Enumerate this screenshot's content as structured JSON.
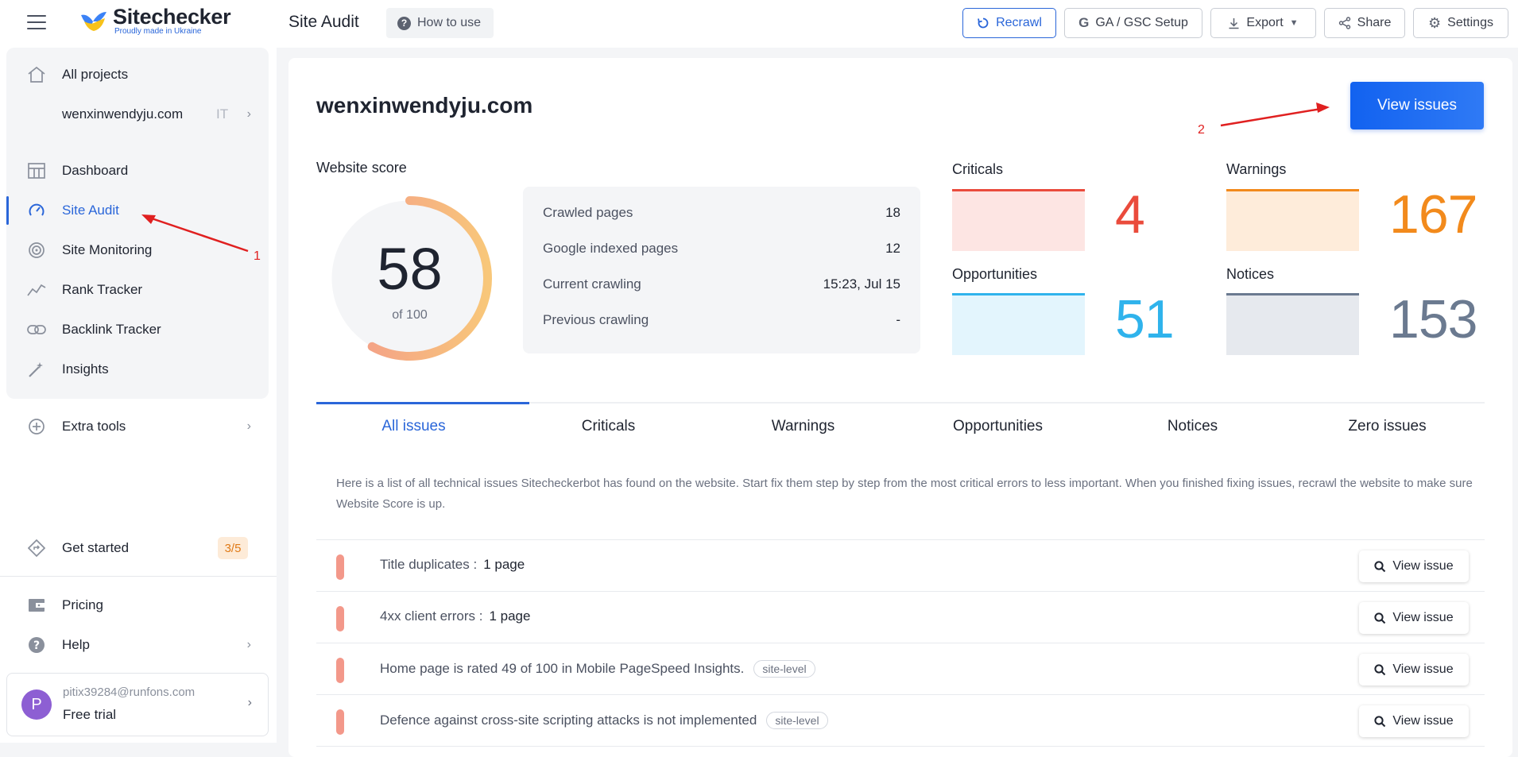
{
  "header": {
    "logo_name": "Sitechecker",
    "logo_tagline": "Proudly made in Ukraine",
    "page_title": "Site Audit",
    "how_to_use": "How to use",
    "buttons": {
      "recrawl": "Recrawl",
      "ga_gsc": "GA / GSC Setup",
      "export": "Export",
      "share": "Share",
      "settings": "Settings"
    }
  },
  "sidebar": {
    "all_projects": "All projects",
    "project": "wenxinwendyju.com",
    "project_tag": "IT",
    "items": [
      {
        "label": "Dashboard",
        "icon": "dashboard-icon"
      },
      {
        "label": "Site Audit",
        "icon": "gauge-icon",
        "active": true
      },
      {
        "label": "Site Monitoring",
        "icon": "monitoring-icon"
      },
      {
        "label": "Rank Tracker",
        "icon": "rank-tracker-icon"
      },
      {
        "label": "Backlink Tracker",
        "icon": "link-icon"
      },
      {
        "label": "Insights",
        "icon": "magic-wand-icon"
      }
    ],
    "extra_tools": "Extra tools",
    "get_started": "Get started",
    "get_started_progress": "3/5",
    "pricing": "Pricing",
    "help": "Help",
    "user": {
      "initial": "P",
      "email": "pitix39284@runfons.com",
      "plan": "Free trial"
    }
  },
  "main": {
    "site_name": "wenxinwendyju.com",
    "view_issues": "View issues",
    "website_score_label": "Website score",
    "score": 58,
    "score_of": "of 100",
    "stats": [
      {
        "label": "Crawled pages",
        "value": "18"
      },
      {
        "label": "Google indexed pages",
        "value": "12"
      },
      {
        "label": "Current crawling",
        "value": "15:23, Jul 15"
      },
      {
        "label": "Previous crawling",
        "value": "-"
      }
    ],
    "metrics": {
      "criticals": {
        "label": "Criticals",
        "value": "4",
        "color": "#ea4b3c"
      },
      "warnings": {
        "label": "Warnings",
        "value": "167",
        "color": "#f28a1c"
      },
      "opportunities": {
        "label": "Opportunities",
        "value": "51",
        "color": "#2fb3ec"
      },
      "notices": {
        "label": "Notices",
        "value": "153",
        "color": "#6b7a90"
      }
    },
    "tabs": [
      "All issues",
      "Criticals",
      "Warnings",
      "Opportunities",
      "Notices",
      "Zero issues"
    ],
    "description": "Here is a list of all technical issues Sitecheckerbot has found on the website. Start fix them step by step from the most critical errors to less important. When you finished fixing issues, recrawl the website to make sure Website Score is up.",
    "issues": [
      {
        "text": "Title duplicates :",
        "count": "1 page",
        "tag": ""
      },
      {
        "text": "4xx client errors :",
        "count": "1 page",
        "tag": ""
      },
      {
        "text": "Home page is rated 49 of 100 in Mobile PageSpeed Insights.",
        "count": "",
        "tag": "site-level"
      },
      {
        "text": "Defence against cross-site scripting attacks is not implemented",
        "count": "",
        "tag": "site-level"
      }
    ],
    "view_issue_label": "View issue"
  },
  "annotations": {
    "marker_1": "1",
    "marker_2": "2",
    "color": "#e02020"
  },
  "colors": {
    "accent": "#2a66d9",
    "score_gradient_start": "#f3988a",
    "score_gradient_end": "#f8c77a"
  }
}
